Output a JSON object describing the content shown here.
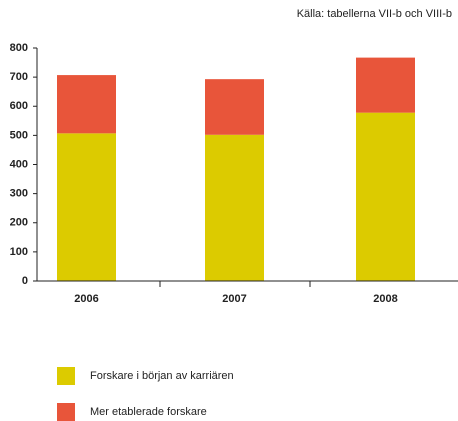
{
  "chart_data": {
    "type": "stacked-bar",
    "source": "Källa: tabellerna VII-b och VIII-b",
    "categories": [
      "2006",
      "2007",
      "2008"
    ],
    "series": [
      {
        "name": "Forskare i början av karriären",
        "color": "#dccb00",
        "values": [
          507,
          502,
          578
        ]
      },
      {
        "name": "Mer etablerade forskare",
        "color": "#e8553a",
        "values": [
          200,
          191,
          189
        ]
      }
    ],
    "ylim": [
      0,
      800
    ],
    "yticks": [
      0,
      100,
      200,
      300,
      400,
      500,
      600,
      700,
      800
    ],
    "grid": false
  }
}
